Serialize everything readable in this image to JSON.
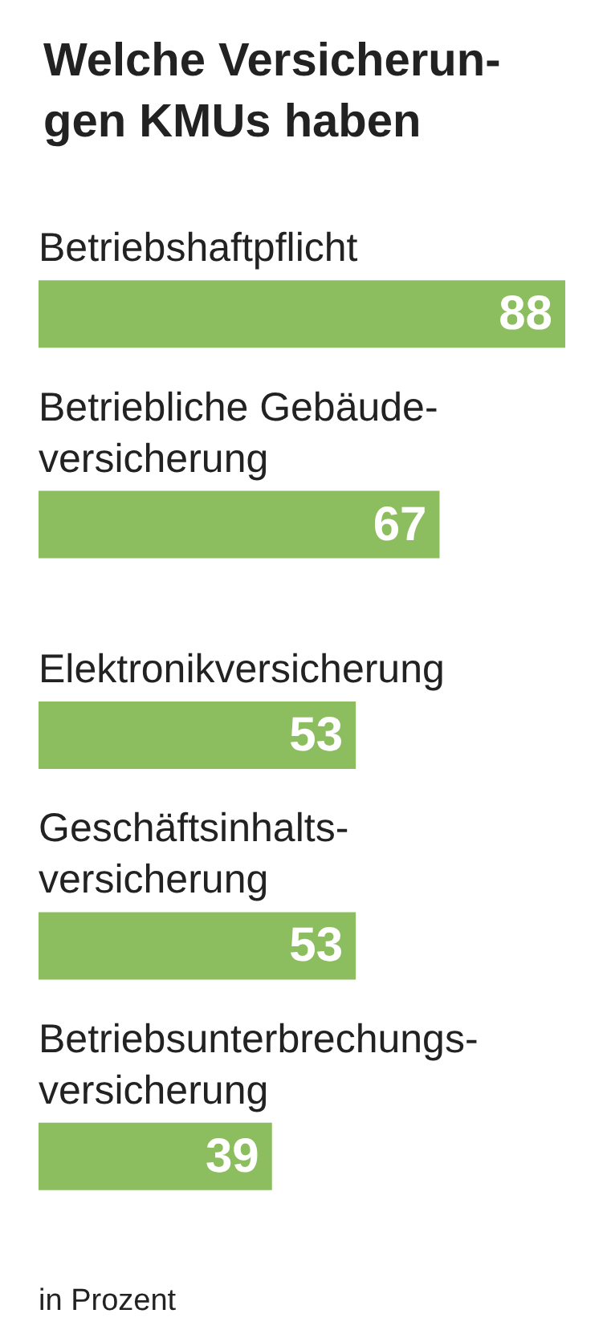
{
  "chart_data": {
    "type": "bar",
    "orientation": "horizontal",
    "title": "Welche Versicherun-\ngen KMUs haben",
    "categories": [
      "Betriebshaftpflicht",
      "Betriebliche Gebäude-\nversicherung",
      "Elektronikversicherung",
      "Geschäftsinhalts-\nversicherung",
      "Betriebsunterbrechungs-\nversicherung"
    ],
    "values": [
      88,
      67,
      53,
      53,
      39
    ],
    "color": "#8cbd5f",
    "data_labels": true,
    "xlim": [
      0,
      88
    ],
    "tick_labels": "y",
    "annotations": [
      "in Prozent"
    ]
  }
}
